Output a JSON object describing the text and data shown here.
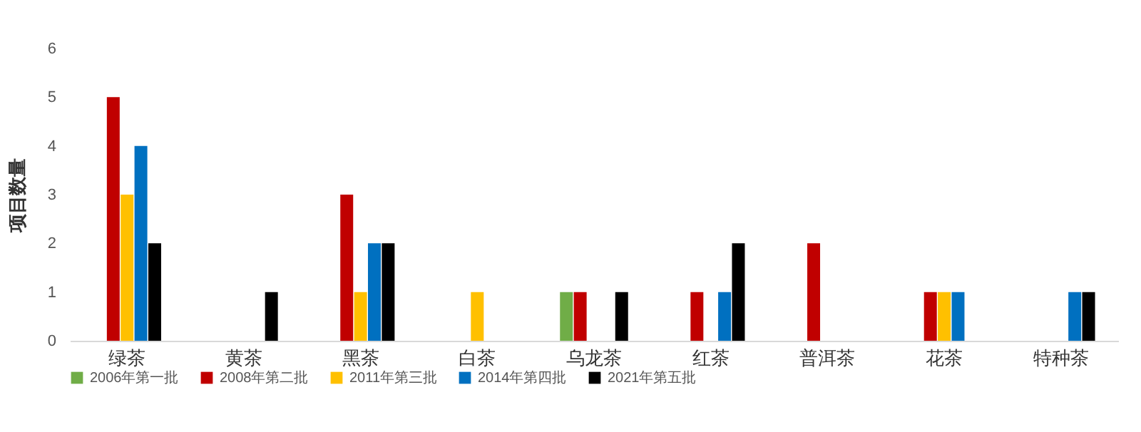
{
  "chart_data": {
    "type": "bar",
    "ylabel": "项目数量",
    "categories": [
      "绿茶",
      "黄茶",
      "黑茶",
      "白茶",
      "乌龙茶",
      "红茶",
      "普洱茶",
      "花茶",
      "特种茶"
    ],
    "ylim": [
      0,
      6
    ],
    "yticks": [
      0,
      1,
      2,
      3,
      4,
      5,
      6
    ],
    "grid": false,
    "legend": "bottom",
    "series": [
      {
        "name": "2006年第一批",
        "color": "#70ad47",
        "values": [
          0,
          0,
          0,
          0,
          1,
          0,
          0,
          0,
          0
        ]
      },
      {
        "name": "2008年第二批",
        "color": "#c00000",
        "values": [
          5,
          0,
          3,
          0,
          1,
          1,
          2,
          1,
          0
        ]
      },
      {
        "name": "2011年第三批",
        "color": "#ffc000",
        "values": [
          3,
          0,
          1,
          1,
          0,
          0,
          0,
          1,
          0
        ]
      },
      {
        "name": "2014年第四批",
        "color": "#0070c0",
        "values": [
          4,
          0,
          2,
          0,
          0,
          1,
          0,
          1,
          1
        ]
      },
      {
        "name": "2021年第五批",
        "color": "#000000",
        "values": [
          2,
          1,
          2,
          0,
          1,
          2,
          0,
          0,
          1
        ]
      }
    ]
  }
}
